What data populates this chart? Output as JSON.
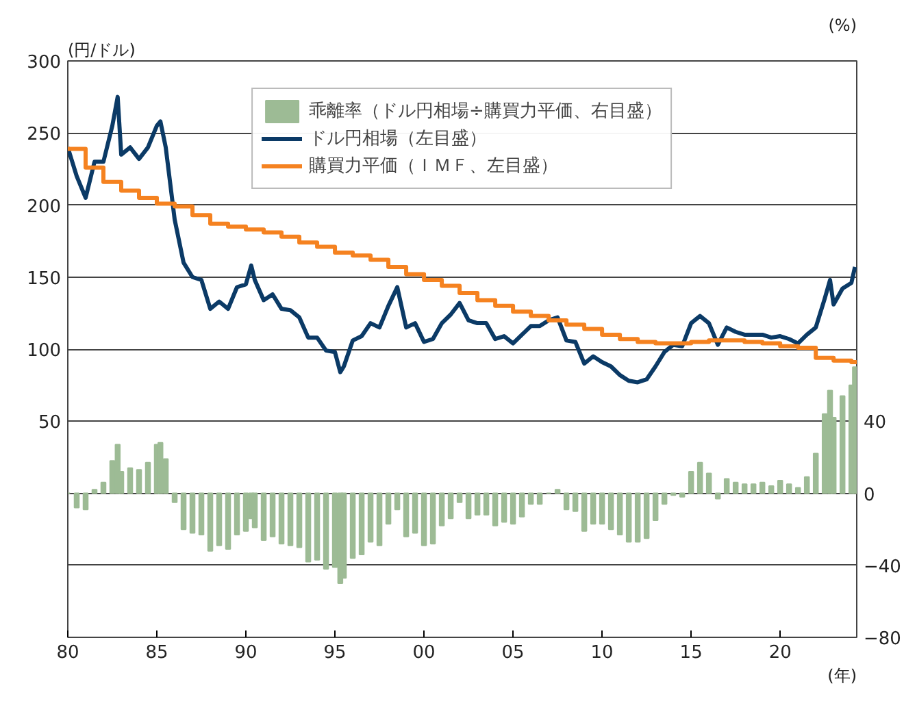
{
  "chart_data": {
    "type": "line",
    "xlabel": "(年)",
    "ylabel": "(円/ドル)",
    "y2label": "(%)",
    "xlim": [
      1980,
      2024.3
    ],
    "xticks": [
      {
        "value": 1980,
        "label": "80"
      },
      {
        "value": 1985,
        "label": "85"
      },
      {
        "value": 1990,
        "label": "90"
      },
      {
        "value": 1995,
        "label": "95"
      },
      {
        "value": 2000,
        "label": "00"
      },
      {
        "value": 2005,
        "label": "05"
      },
      {
        "value": 2010,
        "label": "10"
      },
      {
        "value": 2015,
        "label": "15"
      },
      {
        "value": 2020,
        "label": "20"
      }
    ],
    "ylim": [
      -100,
      300
    ],
    "yticks": [
      50,
      100,
      150,
      200,
      250,
      300
    ],
    "y2lim": [
      -80,
      240
    ],
    "y2ticks": [
      -80,
      -40,
      0,
      40
    ],
    "grid": "y",
    "legend": "top",
    "marker": "none",
    "series": [
      {
        "name": "乖離率（ドル円相場÷購買力平価、右目盛）",
        "type": "bar",
        "axis": "y2",
        "color": "#9dbb95",
        "x": [
          1980.0,
          1980.5,
          1981.0,
          1981.5,
          1982.0,
          1982.5,
          1982.8,
          1983.0,
          1983.5,
          1984.0,
          1984.5,
          1985.0,
          1985.2,
          1985.5,
          1986.0,
          1986.5,
          1987.0,
          1987.5,
          1988.0,
          1988.5,
          1989.0,
          1989.5,
          1990.0,
          1990.3,
          1990.5,
          1991.0,
          1991.5,
          1992.0,
          1992.5,
          1993.0,
          1993.5,
          1994.0,
          1994.5,
          1995.0,
          1995.3,
          1995.5,
          1996.0,
          1996.5,
          1997.0,
          1997.5,
          1998.0,
          1998.5,
          1999.0,
          1999.5,
          2000.0,
          2000.5,
          2001.0,
          2001.5,
          2002.0,
          2002.5,
          2003.0,
          2003.5,
          2004.0,
          2004.5,
          2005.0,
          2005.5,
          2006.0,
          2006.5,
          2007.0,
          2007.5,
          2008.0,
          2008.5,
          2009.0,
          2009.5,
          2010.0,
          2010.5,
          2011.0,
          2011.5,
          2012.0,
          2012.5,
          2013.0,
          2013.5,
          2014.0,
          2014.5,
          2015.0,
          2015.5,
          2016.0,
          2016.5,
          2017.0,
          2017.5,
          2018.0,
          2018.5,
          2019.0,
          2019.5,
          2020.0,
          2020.5,
          2021.0,
          2021.5,
          2022.0,
          2022.5,
          2022.8,
          2023.0,
          2023.5,
          2024.0,
          2024.2
        ],
        "values": [
          0,
          -8,
          -9,
          2,
          6,
          18,
          27,
          12,
          14,
          13,
          17,
          27,
          28,
          19,
          -5,
          -20,
          -22,
          -23,
          -32,
          -29,
          -31,
          -23,
          -21,
          -14,
          -19,
          -26,
          -24,
          -28,
          -29,
          -30,
          -38,
          -37,
          -42,
          -41,
          -50,
          -47,
          -36,
          -34,
          -27,
          -29,
          -17,
          -9,
          -24,
          -22,
          -29,
          -28,
          -18,
          -14,
          -5,
          -14,
          -12,
          -12,
          -18,
          -16,
          -17,
          -13,
          -6,
          -6,
          0,
          2,
          -9,
          -10,
          -21,
          -17,
          -17,
          -20,
          -23,
          -27,
          -27,
          -25,
          -15,
          -6,
          -1,
          -2,
          12,
          17,
          11,
          -3,
          8,
          6,
          5,
          5,
          6,
          4,
          7,
          5,
          3,
          9,
          22,
          44,
          57,
          42,
          54,
          60,
          70
        ]
      },
      {
        "name": "ドル円相場（左目盛）",
        "color": "#0b3a66",
        "x": [
          1980.0,
          1980.5,
          1981.0,
          1981.5,
          1982.0,
          1982.5,
          1982.8,
          1983.0,
          1983.5,
          1984.0,
          1984.5,
          1985.0,
          1985.2,
          1985.5,
          1986.0,
          1986.5,
          1987.0,
          1987.5,
          1988.0,
          1988.5,
          1989.0,
          1989.5,
          1990.0,
          1990.3,
          1990.5,
          1991.0,
          1991.5,
          1992.0,
          1992.5,
          1993.0,
          1993.5,
          1994.0,
          1994.5,
          1995.0,
          1995.3,
          1995.5,
          1996.0,
          1996.5,
          1997.0,
          1997.5,
          1998.0,
          1998.5,
          1999.0,
          1999.5,
          2000.0,
          2000.5,
          2001.0,
          2001.5,
          2002.0,
          2002.5,
          2003.0,
          2003.5,
          2004.0,
          2004.5,
          2005.0,
          2005.5,
          2006.0,
          2006.5,
          2007.0,
          2007.5,
          2008.0,
          2008.5,
          2009.0,
          2009.5,
          2010.0,
          2010.5,
          2011.0,
          2011.5,
          2012.0,
          2012.5,
          2013.0,
          2013.5,
          2014.0,
          2014.5,
          2015.0,
          2015.5,
          2016.0,
          2016.5,
          2017.0,
          2017.5,
          2018.0,
          2018.5,
          2019.0,
          2019.5,
          2020.0,
          2020.5,
          2021.0,
          2021.5,
          2022.0,
          2022.5,
          2022.8,
          2023.0,
          2023.5,
          2024.0,
          2024.2
        ],
        "values": [
          240,
          220,
          205,
          230,
          230,
          255,
          275,
          235,
          240,
          232,
          240,
          255,
          258,
          240,
          190,
          160,
          150,
          148,
          128,
          133,
          128,
          143,
          145,
          158,
          148,
          134,
          138,
          128,
          127,
          122,
          108,
          108,
          99,
          98,
          84,
          88,
          106,
          109,
          118,
          115,
          130,
          143,
          115,
          118,
          105,
          107,
          118,
          124,
          132,
          120,
          118,
          118,
          107,
          109,
          104,
          110,
          116,
          116,
          120,
          122,
          106,
          105,
          90,
          95,
          91,
          88,
          82,
          78,
          77,
          79,
          88,
          98,
          103,
          102,
          118,
          123,
          118,
          103,
          115,
          112,
          110,
          110,
          110,
          108,
          109,
          107,
          104,
          110,
          115,
          135,
          148,
          131,
          142,
          146,
          157
        ]
      },
      {
        "name": "購買力平価（ＩＭＦ、左目盛）",
        "type": "step",
        "color": "#f58220",
        "x": [
          1980,
          1981,
          1982,
          1983,
          1984,
          1985,
          1986,
          1987,
          1988,
          1989,
          1990,
          1991,
          1992,
          1993,
          1994,
          1995,
          1996,
          1997,
          1998,
          1999,
          2000,
          2001,
          2002,
          2003,
          2004,
          2005,
          2006,
          2007,
          2008,
          2009,
          2010,
          2011,
          2012,
          2013,
          2014,
          2015,
          2016,
          2017,
          2018,
          2019,
          2020,
          2021,
          2022,
          2023,
          2024,
          2024.3
        ],
        "values": [
          239,
          226,
          216,
          210,
          205,
          201,
          199,
          193,
          187,
          185,
          183,
          181,
          178,
          174,
          171,
          167,
          165,
          162,
          157,
          152,
          148,
          144,
          139,
          134,
          130,
          126,
          123,
          120,
          117,
          114,
          110,
          107,
          105,
          104,
          104,
          105,
          106,
          106,
          105,
          104,
          102,
          101,
          94,
          92,
          91,
          91
        ]
      }
    ]
  }
}
